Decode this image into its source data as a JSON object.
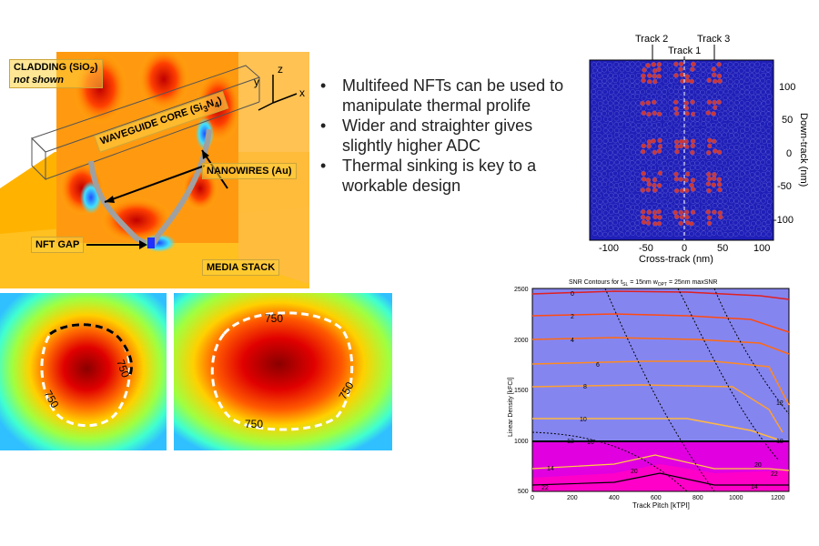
{
  "simulation": {
    "cladding_line1": "CLADDING (SiO",
    "cladding_sub": "2",
    "cladding_close": ")",
    "cladding_line2": "not shown",
    "waveguide_prefix": "WAVEGUIDE CORE (Si",
    "waveguide_sub1": "3",
    "waveguide_mid": "N",
    "waveguide_sub2": "4",
    "waveguide_close": ")",
    "nanowires": "NANOWIRES (Au)",
    "nft_gap": "NFT GAP",
    "media_stack": "MEDIA STACK",
    "axis_x": "x",
    "axis_y": "y",
    "axis_z": "z"
  },
  "bullets": [
    "Multifeed NFTs can be used to manipulate thermal prolife",
    "Wider and straighter gives slightly higher ADC",
    "Thermal sinking is key to a workable design"
  ],
  "thermal_maps": [
    {
      "contour_labels": [
        "750",
        "750"
      ]
    },
    {
      "contour_labels": [
        "750",
        "750",
        "750"
      ]
    }
  ],
  "scatter_plot": {
    "track_labels": [
      "Track 2",
      "Track 1",
      "Track 3"
    ],
    "xlabel": "Cross-track (nm)",
    "ylabel": "Down-track (nm)",
    "xticks": [
      "-100",
      "-50",
      "0",
      "50",
      "100"
    ],
    "yticks": [
      "100",
      "50",
      "0",
      "-50",
      "-100"
    ],
    "colors": {
      "grain": "#1f1fb8",
      "bit": "#c8373a"
    }
  },
  "snr_chart": {
    "title_prefix": "SNR Contours for t",
    "title_sub": "SL",
    "title_mid": " = 15nm w",
    "title_sub2": "OPT",
    "title_suffix": " = 25nm maxSNR",
    "xlabel": "Track Pitch [kTPI]",
    "ylabel": "Linear Density [kFCI]",
    "xticks": [
      "0",
      "200",
      "400",
      "600",
      "800",
      "1000",
      "1200"
    ],
    "yticks": [
      "2500",
      "2000",
      "1500",
      "1000",
      "500"
    ],
    "contour_labels": [
      "0",
      "2",
      "4",
      "6",
      "8",
      "10",
      "12",
      "14",
      "16",
      "20",
      "22",
      "22",
      "20",
      "18",
      "14",
      "12"
    ],
    "colors": {
      "low_region": "#8585f0",
      "mid_region": "#e000e0",
      "high_region": "#ff00c8"
    }
  }
}
